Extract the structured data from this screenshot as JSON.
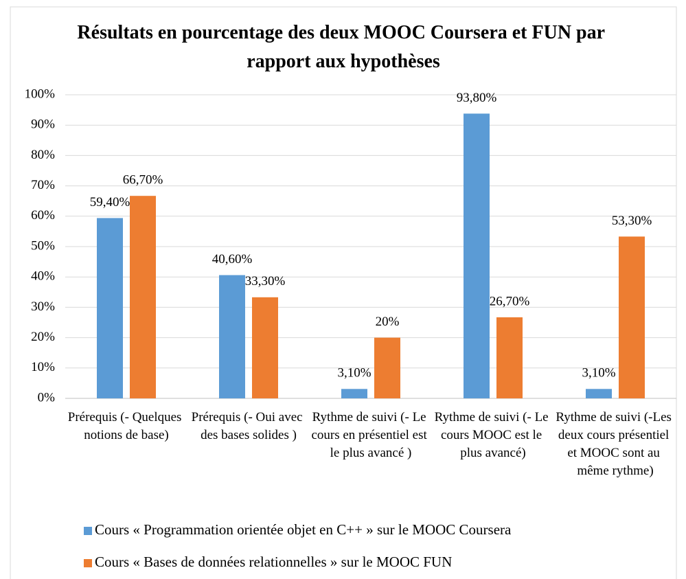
{
  "chart_data": {
    "type": "bar",
    "title": "Résultats en pourcentage des deux MOOC Coursera et FUN par rapport aux hypothèses",
    "categories": [
      "Prérequis (- Quelques notions de base)",
      "Prérequis (- Oui avec des bases solides )",
      "Rythme de suivi (- Le cours en présentiel est le plus avancé )",
      "Rythme de suivi (- Le cours MOOC est le plus avancé)",
      "Rythme de suivi (-Les deux cours présentiel et MOOC sont au même rythme)"
    ],
    "series": [
      {
        "name": "Cours « Programmation orientée objet en C++ » sur le MOOC Coursera",
        "color": "#5b9bd5",
        "values": [
          59.4,
          40.6,
          3.1,
          93.8,
          3.1
        ],
        "value_labels": [
          "59,40%",
          "40,60%",
          "3,10%",
          "93,80%",
          "3,10%"
        ]
      },
      {
        "name": "Cours « Bases de données relationnelles » sur le MOOC FUN",
        "color": "#ed7d31",
        "values": [
          66.7,
          33.3,
          20,
          26.7,
          53.3
        ],
        "value_labels": [
          "66,70%",
          "33,30%",
          "20%",
          "26,70%",
          "53,30%"
        ]
      }
    ],
    "ylim": [
      0,
      100
    ],
    "yticks": [
      {
        "value": 0,
        "label": "0%"
      },
      {
        "value": 10,
        "label": "10%"
      },
      {
        "value": 20,
        "label": "20%"
      },
      {
        "value": 30,
        "label": "30%"
      },
      {
        "value": 40,
        "label": "40%"
      },
      {
        "value": 50,
        "label": "50%"
      },
      {
        "value": 60,
        "label": "60%"
      },
      {
        "value": 70,
        "label": "70%"
      },
      {
        "value": 80,
        "label": "80%"
      },
      {
        "value": 90,
        "label": "90%"
      },
      {
        "value": 100,
        "label": "100%"
      }
    ],
    "grid": true,
    "legend": "bottom"
  }
}
